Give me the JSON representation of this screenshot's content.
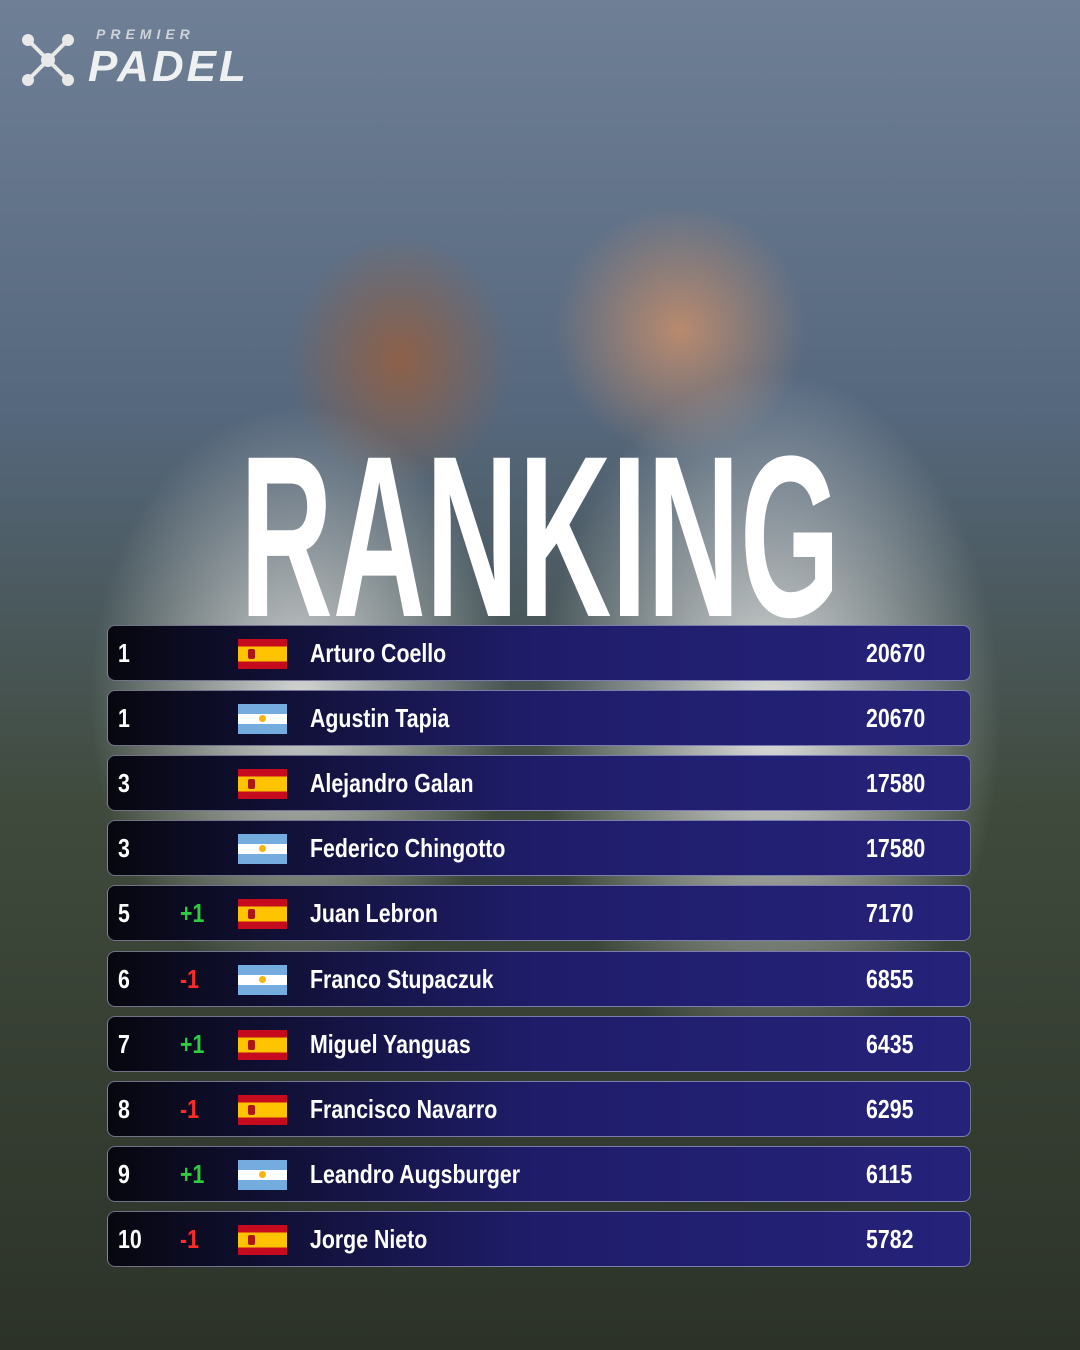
{
  "logo": {
    "top": "PREMIER",
    "main": "PADEL"
  },
  "title": "RANKING",
  "rows": [
    {
      "rank": 1,
      "name": "Arturo Coello",
      "points": 20670
    },
    {
      "rank": 1,
      "name": "Agustin Tapia",
      "points": 20670
    },
    {
      "rank": 3,
      "name": "Alejandro Galan",
      "points": 17580
    },
    {
      "rank": 3,
      "name": "Federico Chingotto",
      "points": 17580
    },
    {
      "rank": 5,
      "change": "+1",
      "name": "Juan Lebron",
      "points": 7170
    },
    {
      "rank": 6,
      "change": "-1",
      "name": "Franco Stupaczuk",
      "points": 6855
    },
    {
      "rank": 7,
      "change": "+1",
      "name": "Miguel Yanguas",
      "points": 6435
    },
    {
      "rank": 8,
      "change": "-1",
      "name": "Francisco Navarro",
      "points": 6295
    },
    {
      "rank": 9,
      "change": "+1",
      "name": "Leandro Augsburger",
      "points": 6115
    },
    {
      "rank": 10,
      "change": "-1",
      "name": "Jorge Nieto",
      "points": 5782
    }
  ]
}
